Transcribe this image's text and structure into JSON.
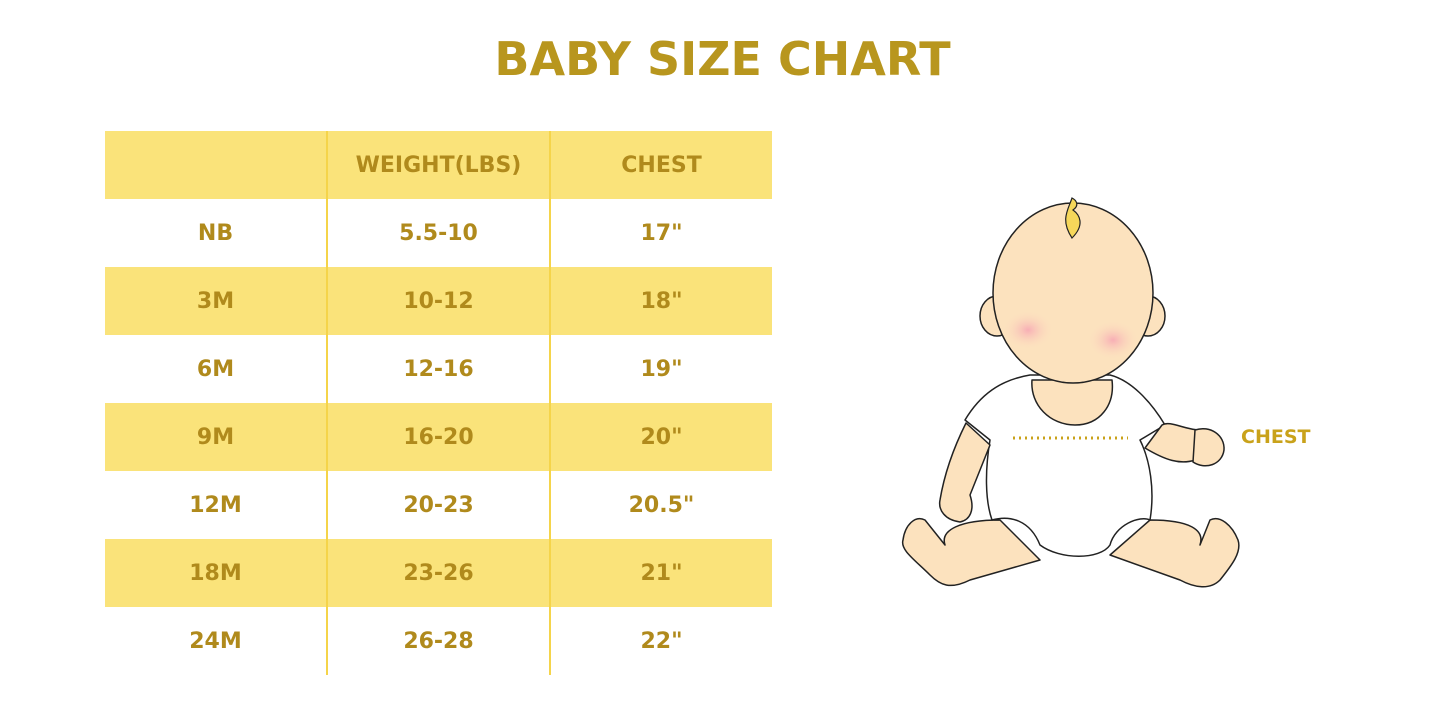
{
  "title": "BABY SIZE CHART",
  "table": {
    "headers": [
      "",
      "WEIGHT(LBS)",
      "CHEST"
    ],
    "rows": [
      [
        "NB",
        "5.5-10",
        "17\""
      ],
      [
        "3M",
        "10-12",
        "18\""
      ],
      [
        "6M",
        "12-16",
        "19\""
      ],
      [
        "9M",
        "16-20",
        "20\""
      ],
      [
        "12M",
        "20-23",
        "20.5\""
      ],
      [
        "18M",
        "23-26",
        "21\""
      ],
      [
        "24M",
        "26-28",
        "22\""
      ]
    ]
  },
  "illustration": {
    "label": "CHEST"
  },
  "colors": {
    "text": "#B8961E",
    "row_fill": "#FAE37A",
    "divider": "#F5D44A"
  }
}
